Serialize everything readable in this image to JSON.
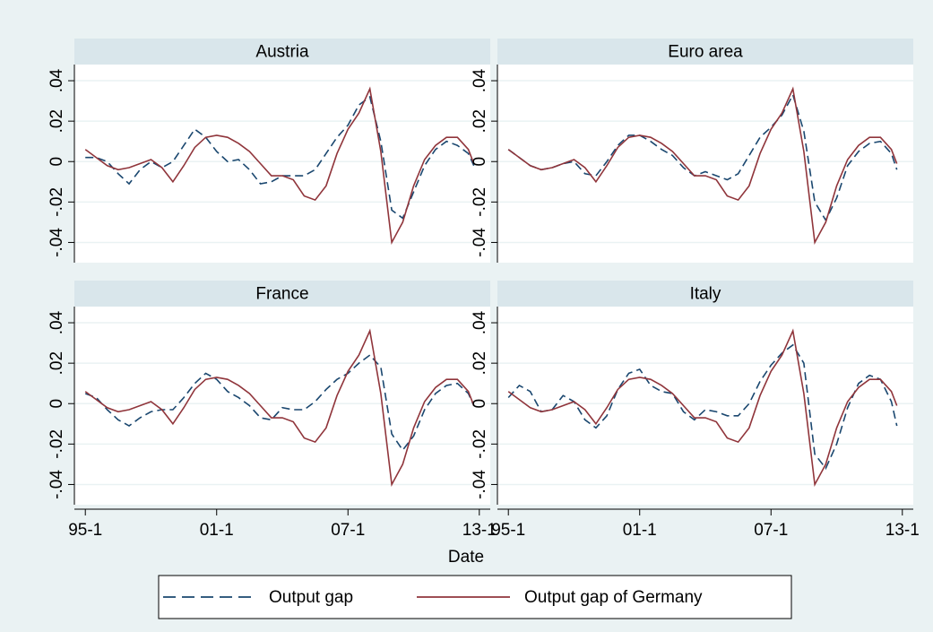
{
  "chart_data": {
    "type": "line",
    "x_label": "Date",
    "x": [
      "95-1",
      "95-3",
      "96-1",
      "96-3",
      "97-1",
      "97-3",
      "98-1",
      "98-3",
      "99-1",
      "99-3",
      "00-1",
      "00-3",
      "01-1",
      "01-3",
      "02-1",
      "02-3",
      "03-1",
      "03-3",
      "04-1",
      "04-3",
      "05-1",
      "05-3",
      "06-1",
      "06-3",
      "07-1",
      "07-3",
      "08-1",
      "08-3",
      "09-1",
      "09-3",
      "10-1",
      "10-3",
      "11-1",
      "11-3",
      "12-1",
      "12-3",
      "12-4"
    ],
    "xlim": [
      "94-3",
      "13-3"
    ],
    "xticks": [
      "95-1",
      "01-1",
      "07-1",
      "13-1"
    ],
    "ylim": [
      -0.05,
      0.048
    ],
    "yticks": [
      {
        "value": -0.04,
        "label": "-.04"
      },
      {
        "value": -0.02,
        "label": "-.02"
      },
      0,
      {
        "value": 0.02,
        "label": ".02"
      },
      {
        "value": 0.04,
        "label": ".04"
      }
    ],
    "grid": true,
    "series": [
      {
        "name": "Output gap",
        "color": "#1a476f",
        "dash": true
      },
      {
        "name": "Output gap of Germany",
        "color": "#90353b",
        "dash": false
      }
    ],
    "panels": [
      {
        "title": "Austria",
        "values": [
          [
            0.002,
            0.002,
            0,
            -0.006,
            -0.011,
            -0.004,
            0,
            -0.003,
            0,
            0.008,
            0.016,
            0.012,
            0.005,
            0,
            0.001,
            -0.004,
            -0.011,
            -0.01,
            -0.007,
            -0.007,
            -0.007,
            -0.004,
            0.004,
            0.012,
            0.018,
            0.028,
            0.032,
            0.01,
            -0.024,
            -0.028,
            -0.015,
            -0.002,
            0.006,
            0.01,
            0.008,
            0.004,
            -0.002
          ],
          [
            0.006,
            0.002,
            -0.002,
            -0.004,
            -0.003,
            -0.001,
            0.001,
            -0.003,
            -0.01,
            -0.002,
            0.007,
            0.012,
            0.013,
            0.012,
            0.009,
            0.005,
            -0.001,
            -0.007,
            -0.007,
            -0.009,
            -0.017,
            -0.019,
            -0.012,
            0.004,
            0.016,
            0.024,
            0.036,
            0.005,
            -0.04,
            -0.03,
            -0.012,
            0.001,
            0.008,
            0.012,
            0.012,
            0.006,
            -0.001
          ]
        ]
      },
      {
        "title": "Euro area",
        "values": [
          [
            0.006,
            0.002,
            -0.002,
            -0.004,
            -0.003,
            -0.001,
            0,
            -0.006,
            -0.007,
            0,
            0.008,
            0.013,
            0.013,
            0.01,
            0.006,
            0.003,
            -0.003,
            -0.007,
            -0.005,
            -0.007,
            -0.009,
            -0.006,
            0.003,
            0.012,
            0.017,
            0.023,
            0.033,
            0.015,
            -0.02,
            -0.029,
            -0.018,
            -0.002,
            0.005,
            0.009,
            0.01,
            0.004,
            -0.004
          ],
          [
            0.006,
            0.002,
            -0.002,
            -0.004,
            -0.003,
            -0.001,
            0.001,
            -0.003,
            -0.01,
            -0.002,
            0.007,
            0.012,
            0.013,
            0.012,
            0.009,
            0.005,
            -0.001,
            -0.007,
            -0.007,
            -0.009,
            -0.017,
            -0.019,
            -0.012,
            0.004,
            0.016,
            0.024,
            0.036,
            0.005,
            -0.04,
            -0.03,
            -0.012,
            0.001,
            0.008,
            0.012,
            0.012,
            0.006,
            -0.001
          ]
        ]
      },
      {
        "title": "France",
        "values": [
          [
            0.005,
            0.003,
            -0.003,
            -0.008,
            -0.011,
            -0.007,
            -0.004,
            -0.003,
            -0.003,
            0.003,
            0.01,
            0.015,
            0.012,
            0.006,
            0.003,
            -0.001,
            -0.007,
            -0.008,
            -0.002,
            -0.003,
            -0.003,
            0.001,
            0.007,
            0.012,
            0.015,
            0.02,
            0.024,
            0.018,
            -0.015,
            -0.023,
            -0.016,
            -0.003,
            0.005,
            0.009,
            0.01,
            0.005,
            -0.001
          ],
          [
            0.006,
            0.002,
            -0.002,
            -0.004,
            -0.003,
            -0.001,
            0.001,
            -0.003,
            -0.01,
            -0.002,
            0.007,
            0.012,
            0.013,
            0.012,
            0.009,
            0.005,
            -0.001,
            -0.007,
            -0.007,
            -0.009,
            -0.017,
            -0.019,
            -0.012,
            0.004,
            0.016,
            0.024,
            0.036,
            0.005,
            -0.04,
            -0.03,
            -0.012,
            0.001,
            0.008,
            0.012,
            0.012,
            0.006,
            -0.001
          ]
        ]
      },
      {
        "title": "Italy",
        "values": [
          [
            0.003,
            0.009,
            0.006,
            -0.004,
            -0.003,
            0.004,
            0.001,
            -0.008,
            -0.012,
            -0.006,
            0.007,
            0.015,
            0.017,
            0.009,
            0.006,
            0.005,
            -0.004,
            -0.008,
            -0.003,
            -0.004,
            -0.006,
            -0.006,
            0,
            0.011,
            0.019,
            0.025,
            0.029,
            0.02,
            -0.025,
            -0.032,
            -0.02,
            -0.002,
            0.01,
            0.014,
            0.012,
            0.001,
            -0.011
          ],
          [
            0.006,
            0.002,
            -0.002,
            -0.004,
            -0.003,
            -0.001,
            0.001,
            -0.003,
            -0.01,
            -0.002,
            0.007,
            0.012,
            0.013,
            0.012,
            0.009,
            0.005,
            -0.001,
            -0.007,
            -0.007,
            -0.009,
            -0.017,
            -0.019,
            -0.012,
            0.004,
            0.016,
            0.024,
            0.036,
            0.005,
            -0.04,
            -0.03,
            -0.012,
            0.001,
            0.008,
            0.012,
            0.012,
            0.006,
            -0.001
          ]
        ]
      }
    ]
  }
}
